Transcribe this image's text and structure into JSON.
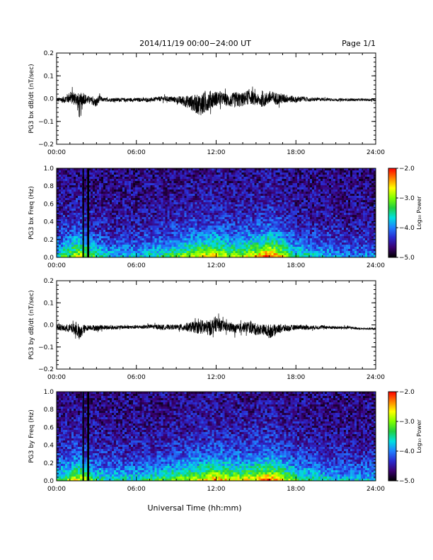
{
  "header": {
    "title": "2014/11/19  00:00−24:00 UT",
    "page": "Page 1/1"
  },
  "xlabel": "Universal Time (hh:mm)",
  "x_ticks": [
    "00:00",
    "06:00",
    "12:00",
    "18:00",
    "24:00"
  ],
  "colors": {
    "trace": "#000000",
    "background": "#ffffff",
    "colorbar": [
      "#000000",
      "#3a0070",
      "#2a2ad0",
      "#2080ff",
      "#00e0e0",
      "#20d040",
      "#80ff00",
      "#ffff00",
      "#ff8000",
      "#ff0000"
    ]
  },
  "chart_data": [
    {
      "type": "line",
      "ylabel": "PG3 bx dB/dt (nT/sec)",
      "xlim": [
        0,
        24
      ],
      "ylim": [
        -0.2,
        0.2
      ],
      "y_ticks": [
        "−0.2",
        "−0.1",
        "0.0",
        "0.1",
        "0.2"
      ],
      "y_tick_values": [
        -0.2,
        -0.1,
        0.0,
        0.1,
        0.2
      ],
      "series": [
        {
          "x_hours": [
            0.0,
            0.5,
            1.0,
            1.5,
            1.75,
            2.0,
            2.25,
            2.5,
            3.0,
            3.2,
            3.5,
            4.0,
            5.0,
            6.0,
            7.0,
            8.0,
            9.0,
            9.5,
            10.0,
            10.5,
            11.0,
            11.5,
            12.0,
            12.5,
            13.0,
            13.5,
            14.0,
            14.5,
            15.0,
            15.5,
            16.0,
            16.5,
            17.0,
            17.5,
            18.0,
            18.5,
            19.0,
            20.0,
            21.0,
            22.0,
            23.0,
            24.0
          ],
          "envelope_max": [
            0.01,
            0.02,
            0.05,
            0.06,
            0.07,
            0.06,
            0.03,
            0.02,
            0.02,
            0.03,
            0.01,
            0.01,
            0.01,
            0.01,
            0.01,
            0.02,
            0.02,
            0.03,
            0.04,
            0.05,
            0.07,
            0.07,
            0.06,
            0.05,
            0.04,
            0.06,
            0.05,
            0.07,
            0.04,
            0.04,
            0.06,
            0.05,
            0.04,
            0.03,
            0.02,
            0.02,
            0.01,
            0.01,
            0.005,
            0.005,
            0.005,
            0.005
          ],
          "envelope_min": [
            -0.02,
            -0.03,
            -0.04,
            -0.06,
            -0.15,
            -0.05,
            -0.04,
            -0.03,
            -0.06,
            -0.03,
            -0.02,
            -0.02,
            -0.02,
            -0.02,
            -0.02,
            -0.02,
            -0.03,
            -0.05,
            -0.07,
            -0.1,
            -0.12,
            -0.08,
            -0.06,
            -0.05,
            -0.06,
            -0.07,
            -0.06,
            -0.05,
            -0.05,
            -0.06,
            -0.05,
            -0.05,
            -0.04,
            -0.03,
            -0.03,
            -0.02,
            -0.02,
            -0.015,
            -0.015,
            -0.015,
            -0.015,
            -0.015
          ]
        }
      ]
    },
    {
      "type": "heatmap",
      "ylabel": "PG3 bx Freq (Hz)",
      "xlim": [
        0,
        24
      ],
      "ylim": [
        0.0,
        1.0
      ],
      "y_ticks": [
        "0.0",
        "0.2",
        "0.4",
        "0.6",
        "0.8",
        "1.0"
      ],
      "y_tick_values": [
        0.0,
        0.2,
        0.4,
        0.6,
        0.8,
        1.0
      ],
      "colorbar": {
        "label": "Log₁₀ Power",
        "range": [
          -5.0,
          -2.0
        ],
        "ticks": [
          "−2.0",
          "−3.0",
          "−4.0",
          "−5.0"
        ],
        "tick_values": [
          -2.0,
          -3.0,
          -4.0,
          -5.0
        ]
      },
      "data_gaps_hours": [
        [
          1.95,
          2.05
        ],
        [
          2.3,
          2.45
        ]
      ],
      "activity_hours": [
        0.0,
        1.0,
        1.5,
        2.0,
        3.0,
        4.0,
        6.0,
        8.0,
        10.0,
        11.0,
        12.0,
        13.0,
        14.0,
        15.0,
        16.0,
        17.0,
        18.0,
        20.0,
        22.0,
        24.0
      ],
      "activity_level": [
        0.3,
        0.45,
        0.55,
        0.5,
        0.35,
        0.25,
        0.25,
        0.35,
        0.5,
        0.55,
        0.6,
        0.5,
        0.5,
        0.6,
        0.75,
        0.55,
        0.35,
        0.25,
        0.2,
        0.2
      ]
    },
    {
      "type": "line",
      "ylabel": "PG3 by dB/dt (nT/sec)",
      "xlim": [
        0,
        24
      ],
      "ylim": [
        -0.2,
        0.2
      ],
      "y_ticks": [
        "−0.2",
        "−0.1",
        "0.0",
        "0.1",
        "0.2"
      ],
      "y_tick_values": [
        -0.2,
        -0.1,
        0.0,
        0.1,
        0.2
      ],
      "series": [
        {
          "x_hours": [
            0.0,
            0.5,
            1.0,
            1.5,
            1.75,
            2.0,
            2.25,
            2.5,
            3.0,
            3.5,
            4.0,
            5.0,
            6.0,
            7.0,
            8.0,
            9.0,
            9.5,
            10.0,
            10.5,
            11.0,
            11.5,
            12.0,
            12.5,
            13.0,
            13.5,
            14.0,
            14.5,
            15.0,
            15.5,
            16.0,
            16.5,
            17.0,
            17.5,
            18.0,
            18.5,
            19.0,
            20.0,
            21.0,
            22.0,
            23.0,
            24.0
          ],
          "envelope_max": [
            0.01,
            0.01,
            0.02,
            0.03,
            0.02,
            0.02,
            0.01,
            0.01,
            0.01,
            0.01,
            0.005,
            0.005,
            0.005,
            0.01,
            0.01,
            0.01,
            0.02,
            0.03,
            0.04,
            0.05,
            0.05,
            0.07,
            0.04,
            0.03,
            0.02,
            0.03,
            0.04,
            0.03,
            0.02,
            0.03,
            0.02,
            0.02,
            0.01,
            0.01,
            0.01,
            0.005,
            0.005,
            0.0,
            0.0,
            -0.01,
            -0.01
          ],
          "envelope_min": [
            -0.03,
            -0.04,
            -0.05,
            -0.07,
            -0.11,
            -0.06,
            -0.04,
            -0.03,
            -0.04,
            -0.03,
            -0.03,
            -0.025,
            -0.025,
            -0.025,
            -0.03,
            -0.03,
            -0.04,
            -0.05,
            -0.06,
            -0.07,
            -0.08,
            -0.06,
            -0.05,
            -0.05,
            -0.06,
            -0.05,
            -0.06,
            -0.07,
            -0.06,
            -0.09,
            -0.06,
            -0.05,
            -0.04,
            -0.03,
            -0.03,
            -0.03,
            -0.025,
            -0.025,
            -0.025,
            -0.025,
            -0.025
          ]
        }
      ]
    },
    {
      "type": "heatmap",
      "ylabel": "PG3 by Freq (Hz)",
      "xlim": [
        0,
        24
      ],
      "ylim": [
        0.0,
        1.0
      ],
      "y_ticks": [
        "0.0",
        "0.2",
        "0.4",
        "0.6",
        "0.8",
        "1.0"
      ],
      "y_tick_values": [
        0.0,
        0.2,
        0.4,
        0.6,
        0.8,
        1.0
      ],
      "colorbar": {
        "label": "Log₁₀ Power",
        "range": [
          -5.0,
          -2.0
        ],
        "ticks": [
          "−2.0",
          "−3.0",
          "−4.0",
          "−5.0"
        ],
        "tick_values": [
          -2.0,
          -3.0,
          -4.0,
          -5.0
        ]
      },
      "data_gaps_hours": [
        [
          1.95,
          2.05
        ],
        [
          2.3,
          2.45
        ]
      ],
      "activity_hours": [
        0.0,
        1.0,
        1.5,
        2.0,
        3.0,
        4.0,
        6.0,
        8.0,
        10.0,
        11.0,
        12.0,
        13.0,
        14.0,
        15.0,
        16.0,
        17.0,
        18.0,
        20.0,
        22.0,
        24.0
      ],
      "activity_level": [
        0.35,
        0.45,
        0.55,
        0.5,
        0.35,
        0.3,
        0.3,
        0.4,
        0.5,
        0.55,
        0.65,
        0.55,
        0.55,
        0.6,
        0.7,
        0.55,
        0.4,
        0.3,
        0.25,
        0.25
      ]
    }
  ]
}
